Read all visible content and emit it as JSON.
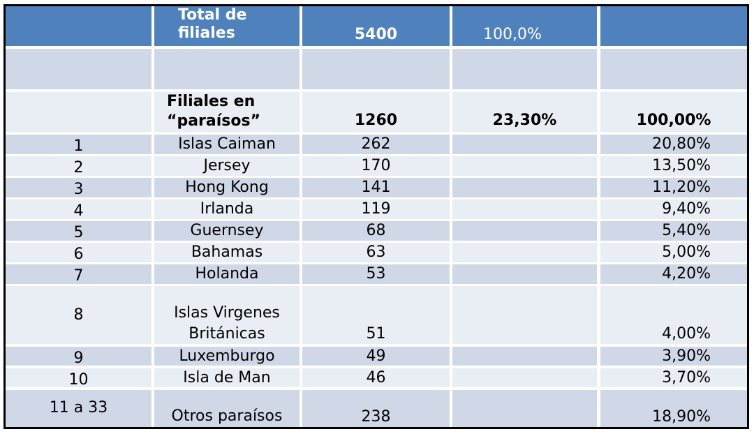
{
  "header": {
    "label": "Total de filiales",
    "total": "5400",
    "percent": "100,0%"
  },
  "summary": {
    "label": "Filiales en “paraísos”",
    "total": "1260",
    "percent_of_total": "23,30%",
    "percent_share": "100,00%"
  },
  "rows": [
    {
      "rank": "1",
      "name": "Islas Caiman",
      "count": "262",
      "share": "20,80%"
    },
    {
      "rank": "2",
      "name": "Jersey",
      "count": "170",
      "share": "13,50%"
    },
    {
      "rank": "3",
      "name": "Hong Kong",
      "count": "141",
      "share": "11,20%"
    },
    {
      "rank": "4",
      "name": "Irlanda",
      "count": "119",
      "share": "9,40%"
    },
    {
      "rank": "5",
      "name": "Guernsey",
      "count": "68",
      "share": "5,40%"
    },
    {
      "rank": "6",
      "name": "Bahamas",
      "count": "63",
      "share": "5,00%"
    },
    {
      "rank": "7",
      "name": "Holanda",
      "count": "53",
      "share": "4,20%"
    },
    {
      "rank": "8",
      "name": "Islas Virgenes Británicas",
      "count": "51",
      "share": "4,00%"
    },
    {
      "rank": "9",
      "name": "Luxemburgo",
      "count": "49",
      "share": "3,90%"
    },
    {
      "rank": "10",
      "name": "Isla de Man",
      "count": "46",
      "share": "3,70%"
    },
    {
      "rank": "11 a 33",
      "name": "Otros paraísos",
      "count": "238",
      "share": "18,90%"
    }
  ]
}
